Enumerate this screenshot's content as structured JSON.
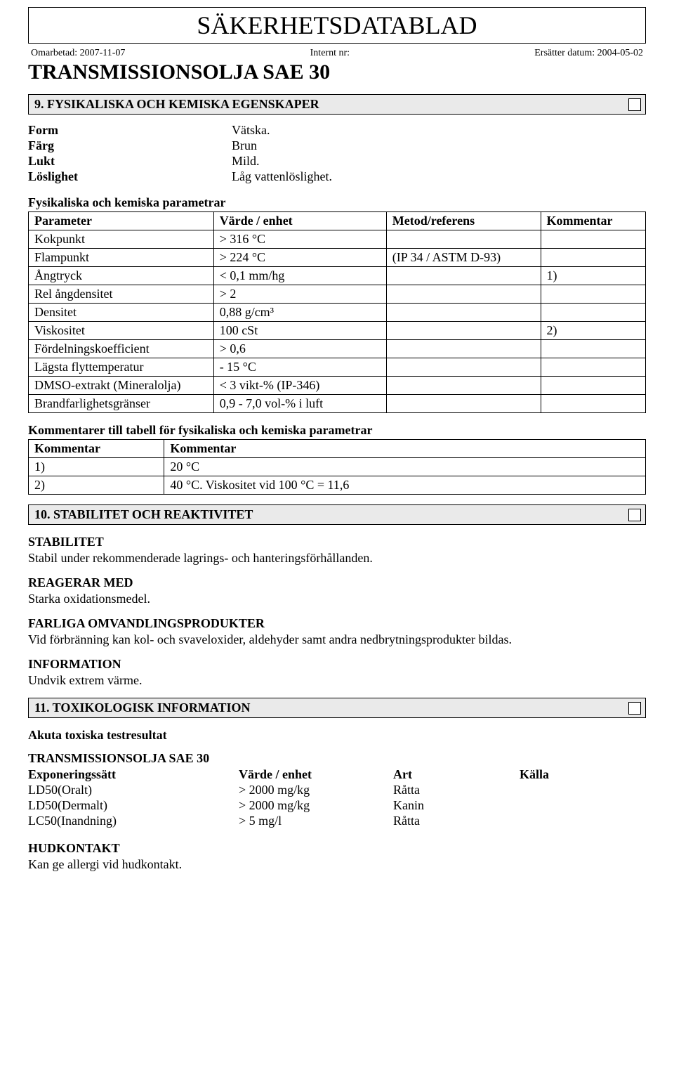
{
  "doc": {
    "title": "SÄKERHETSDATABLAD",
    "revised_label": "Omarbetad:",
    "revised_value": "2007-11-07",
    "internal_label": "Internt nr:",
    "internal_value": "",
    "replaces_label": "Ersätter datum:",
    "replaces_value": "2004-05-02",
    "product": "TRANSMISSIONSOLJA SAE 30"
  },
  "section9": {
    "title": "9. FYSIKALISKA OCH KEMISKA EGENSKAPER",
    "basic": [
      {
        "label": "Form",
        "value": "Vätska."
      },
      {
        "label": "Färg",
        "value": "Brun"
      },
      {
        "label": "Lukt",
        "value": "Mild."
      },
      {
        "label": "Löslighet",
        "value": "Låg vattenlöslighet."
      }
    ],
    "param_head": "Fysikaliska och kemiska parametrar",
    "param_table": {
      "headers": [
        "Parameter",
        "Värde / enhet",
        "Metod/referens",
        "Kommentar"
      ],
      "rows": [
        [
          "Kokpunkt",
          "> 316 °C",
          "",
          ""
        ],
        [
          "Flampunkt",
          "> 224 °C",
          "(IP 34 / ASTM D-93)",
          ""
        ],
        [
          "Ångtryck",
          "< 0,1 mm/hg",
          "",
          "1)"
        ],
        [
          "Rel ångdensitet",
          "> 2",
          "",
          ""
        ],
        [
          "Densitet",
          "0,88 g/cm³",
          "",
          ""
        ],
        [
          "Viskositet",
          "100 cSt",
          "",
          "2)"
        ],
        [
          "Fördelningskoefficient",
          "> 0,6",
          "",
          ""
        ],
        [
          "Lägsta flyttemperatur",
          "- 15 °C",
          "",
          ""
        ],
        [
          "DMSO-extrakt (Mineralolja)",
          "< 3 vikt-% (IP-346)",
          "",
          ""
        ],
        [
          "Brandfarlighetsgränser",
          "0,9 - 7,0 vol-% i luft",
          "",
          ""
        ]
      ]
    },
    "comment_head": "Kommentarer till tabell för fysikaliska och kemiska parametrar",
    "comment_table": {
      "headers": [
        "Kommentar",
        "Kommentar"
      ],
      "rows": [
        [
          "1)",
          "20 °C"
        ],
        [
          "2)",
          "40 °C. Viskositet vid 100 °C = 11,6"
        ]
      ]
    }
  },
  "section10": {
    "title": "10. STABILITET OCH REAKTIVITET",
    "blocks": [
      {
        "head": "STABILITET",
        "text": "Stabil under rekommenderade lagrings- och hanteringsförhållanden."
      },
      {
        "head": "REAGERAR MED",
        "text": "Starka oxidationsmedel."
      },
      {
        "head": "FARLIGA OMVANDLINGSPRODUKTER",
        "text": "Vid förbränning kan kol- och svaveloxider, aldehyder samt andra nedbrytningsprodukter bildas."
      },
      {
        "head": "INFORMATION",
        "text": "Undvik extrem värme."
      }
    ]
  },
  "section11": {
    "title": "11. TOXIKOLOGISK INFORMATION",
    "acute_head": "Akuta toxiska testresultat",
    "group_name": "TRANSMISSIONSOLJA SAE 30",
    "columns": [
      "Exponeringssätt",
      "Värde / enhet",
      "Art",
      "Källa"
    ],
    "rows": [
      [
        "LD50(Oralt)",
        "> 2000 mg/kg",
        "Råtta",
        ""
      ],
      [
        "LD50(Dermalt)",
        "> 2000 mg/kg",
        "Kanin",
        ""
      ],
      [
        "LC50(Inandning)",
        "> 5 mg/l",
        "Råtta",
        ""
      ]
    ],
    "skin_head": "HUDKONTAKT",
    "skin_text": "Kan ge allergi vid hudkontakt."
  }
}
